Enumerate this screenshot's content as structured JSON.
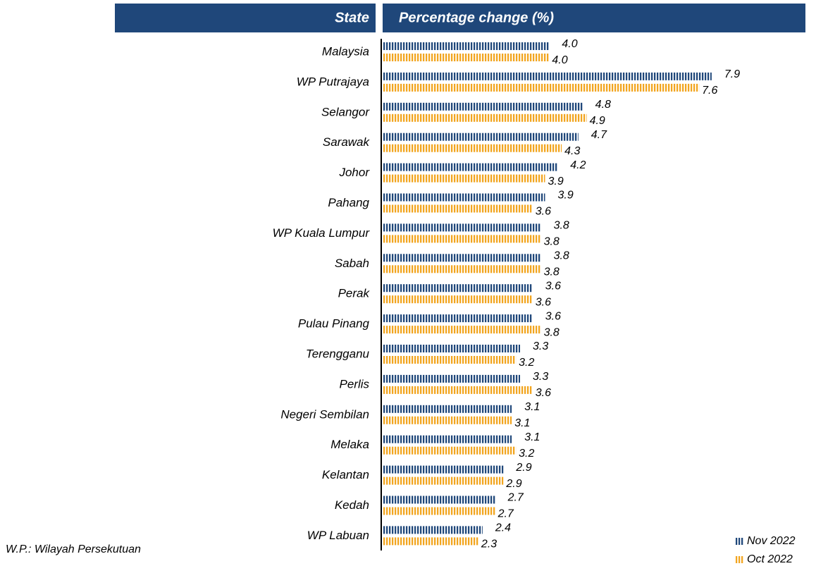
{
  "chart_data": {
    "type": "bar",
    "orientation": "horizontal",
    "header": {
      "category": "State",
      "value": "Percentage change (%)"
    },
    "categories": [
      "Malaysia",
      "WP Putrajaya",
      "Selangor",
      "Sarawak",
      "Johor",
      "Pahang",
      "WP Kuala Lumpur",
      "Sabah",
      "Perak",
      "Pulau Pinang",
      "Terengganu",
      "Perlis",
      "Negeri Sembilan",
      "Melaka",
      "Kelantan",
      "Kedah",
      "WP Labuan"
    ],
    "series": [
      {
        "name": "Nov 2022",
        "color": "#1f477a",
        "values": [
          4.0,
          7.9,
          4.8,
          4.7,
          4.2,
          3.9,
          3.8,
          3.8,
          3.6,
          3.6,
          3.3,
          3.3,
          3.1,
          3.1,
          2.9,
          2.7,
          2.4
        ],
        "value_labels": [
          "4.0",
          "7.9",
          "4.8",
          "4.7",
          "4.2",
          "3.9",
          "3.8",
          "3.8",
          "3.6",
          "3.6",
          "3.3",
          "3.3",
          "3.1",
          "3.1",
          "2.9",
          "2.7",
          "2.4"
        ]
      },
      {
        "name": "Oct 2022",
        "color": "#f2a51f",
        "values": [
          4.0,
          7.6,
          4.9,
          4.3,
          3.9,
          3.6,
          3.8,
          3.8,
          3.6,
          3.8,
          3.2,
          3.6,
          3.1,
          3.2,
          2.9,
          2.7,
          2.3
        ],
        "value_labels": [
          "4.0",
          "7.6",
          "4.9",
          "4.3",
          "3.9",
          "3.6",
          "3.8",
          "3.8",
          "3.6",
          "3.8",
          "3.2",
          "3.6",
          "3.1",
          "3.2",
          "2.9",
          "2.7",
          "2.3"
        ]
      }
    ],
    "xlim": [
      0,
      10
    ],
    "footnote": "W.P.: Wilayah Persekutuan"
  }
}
